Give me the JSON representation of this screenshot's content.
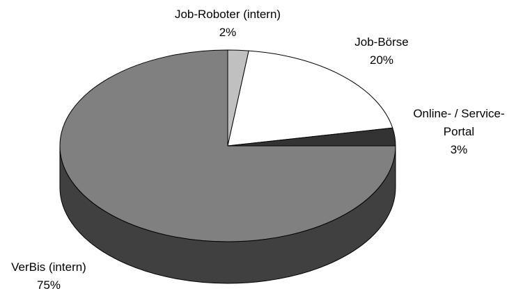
{
  "chart_data": {
    "type": "pie3d",
    "categories": [
      "Job-Roboter (intern)",
      "Job-Börse",
      "Online- / Service-Portal",
      "VerBis (intern)"
    ],
    "values": [
      2,
      20,
      3,
      75
    ],
    "value_labels": [
      "2%",
      "20%",
      "3%",
      "75%"
    ],
    "colors": [
      "#c0c0c0",
      "#ffffff",
      "#333333",
      "#808080"
    ]
  }
}
